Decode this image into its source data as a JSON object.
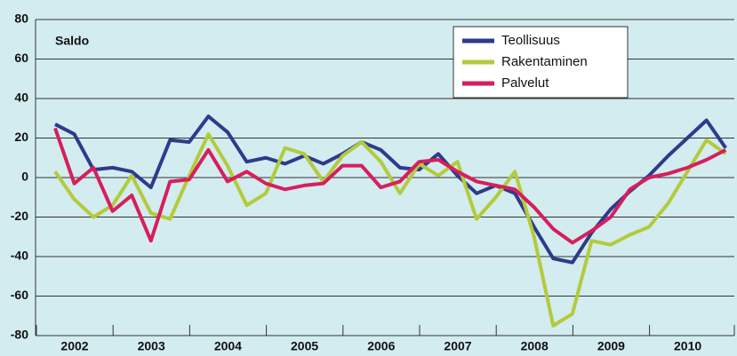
{
  "chart_data": {
    "type": "line",
    "annotation": "Saldo",
    "categories": [
      "2002",
      null,
      null,
      null,
      "2003",
      null,
      null,
      null,
      "2004",
      null,
      null,
      null,
      "2005",
      null,
      null,
      null,
      "2006",
      null,
      null,
      null,
      "2007",
      null,
      null,
      null,
      "2008",
      null,
      null,
      null,
      "2009",
      null,
      null,
      null,
      "2010",
      null,
      null,
      null
    ],
    "series": [
      {
        "name": "Teollisuus",
        "color": "#2e3a8c",
        "values": [
          27,
          22,
          4,
          5,
          3,
          -5,
          19,
          18,
          31,
          23,
          8,
          10,
          7,
          11,
          7,
          12,
          18,
          14,
          5,
          4,
          12,
          1,
          -8,
          -4,
          -8,
          -25,
          -41,
          -43,
          -28,
          -16,
          -7,
          1,
          11,
          20,
          29,
          15
        ]
      },
      {
        "name": "Rakentaminen",
        "color": "#b3cb3b",
        "values": [
          3,
          -11,
          -20,
          -14,
          1,
          -18,
          -21,
          1,
          22,
          6,
          -14,
          -8,
          15,
          12,
          -2,
          11,
          18,
          8,
          -8,
          7,
          1,
          8,
          -21,
          -10,
          3,
          -30,
          -75,
          -69,
          -32,
          -34,
          -29,
          -25,
          -13,
          3,
          19,
          12
        ]
      },
      {
        "name": "Palvelut",
        "color": "#d61f5c",
        "values": [
          25,
          -3,
          5,
          -17,
          -9,
          -32,
          -2,
          -1,
          14,
          -2,
          3,
          -3,
          -6,
          -4,
          -3,
          6,
          6,
          -5,
          -2,
          8,
          9,
          3,
          -2,
          -4,
          -6,
          -15,
          -26,
          -33,
          -27,
          -20,
          -6,
          0,
          2,
          5,
          9,
          14
        ]
      }
    ],
    "ylim": [
      -80,
      80
    ],
    "yticks": [
      -80,
      -60,
      -40,
      -20,
      0,
      20,
      40,
      60,
      80
    ],
    "grid": true,
    "legend": "top-right"
  }
}
